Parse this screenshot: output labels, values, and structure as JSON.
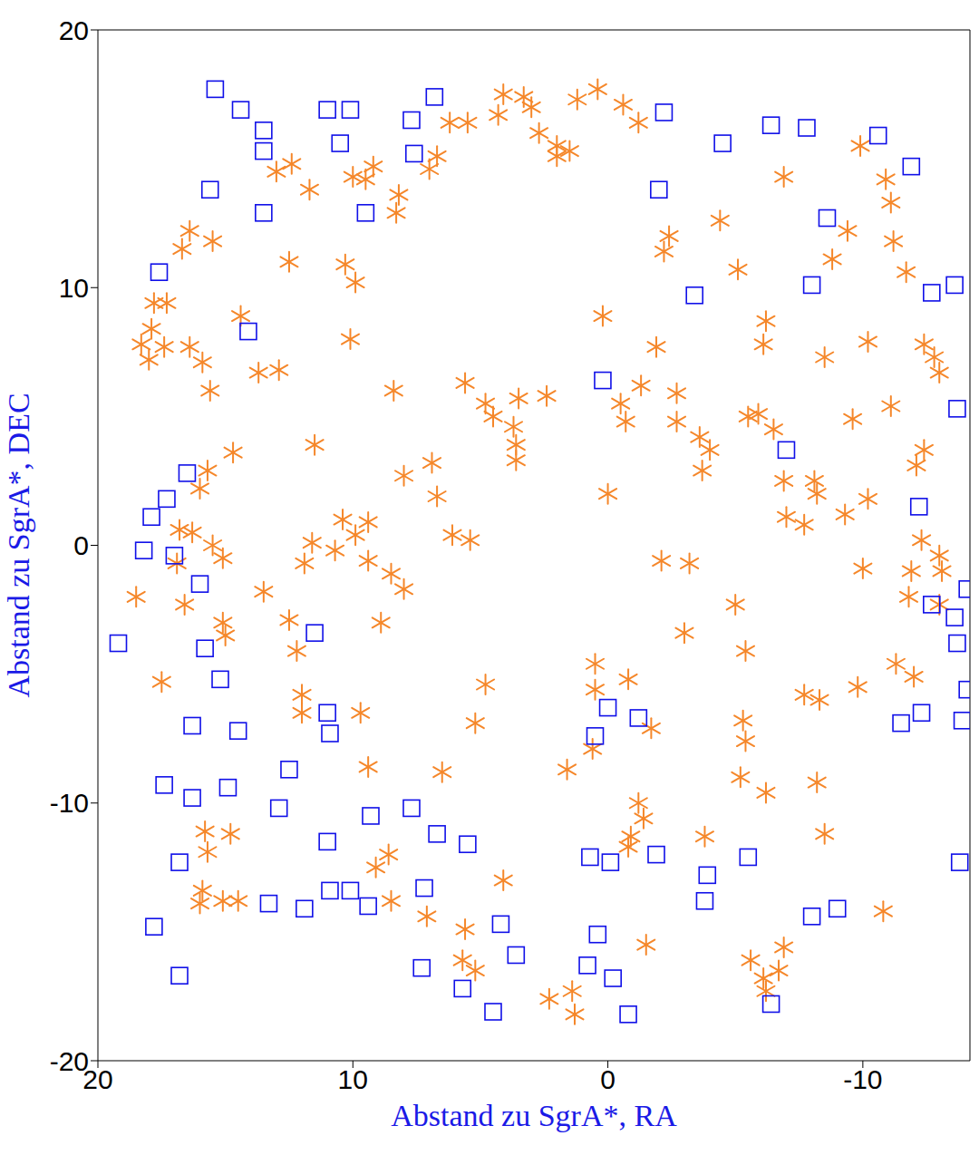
{
  "chart_data": {
    "type": "scatter",
    "xlabel": "Abstand zu SgrA*, RA",
    "ylabel": "Abstand zu SgrA*, DEC",
    "xlim": [
      20,
      -14.2
    ],
    "ylim": [
      -20,
      20
    ],
    "xticks": [
      20,
      10,
      0,
      -10
    ],
    "yticks": [
      -20,
      -10,
      0,
      10,
      20
    ],
    "series": [
      {
        "color": "#f5872a",
        "marker": "asterisk",
        "x": [
          4.1,
          3.3,
          3.0,
          2.7,
          1.2,
          0.4,
          -0.6,
          -1.2,
          5.5,
          6.2,
          6.7,
          7.0,
          4.3,
          2.0,
          1.5,
          2.0,
          8.2,
          8.3,
          9.2,
          10.0,
          9.5,
          12.4,
          13.0,
          11.7,
          12.5,
          16.4,
          16.7,
          15.5,
          17.8,
          17.3,
          17.9,
          18.3,
          18.0,
          17.4,
          16.4,
          15.9,
          15.6,
          14.4,
          10.3,
          9.9,
          10.1,
          13.7,
          12.9,
          11.5,
          14.7,
          15.7,
          16.0,
          16.8,
          16.3,
          15.5,
          15.1,
          16.9,
          16.6,
          18.5,
          17.5,
          15.1,
          15.0,
          12.5,
          13.5,
          11.6,
          11.9,
          10.7,
          9.9,
          9.4,
          9.4,
          10.4,
          8.5,
          8.0,
          8.9,
          12.2,
          12.0,
          12.0,
          9.7,
          9.4,
          6.5,
          4.8,
          5.2,
          8.6,
          9.1,
          8.5,
          7.1,
          5.6,
          5.7,
          5.2,
          4.1,
          15.8,
          15.7,
          14.8,
          15.9,
          15.1,
          16.0,
          14.5,
          6.7,
          6.1,
          5.4,
          6.9,
          8.0,
          8.4,
          4.8,
          4.5,
          5.6,
          3.5,
          3.7,
          3.6,
          3.6,
          2.4,
          -0.5,
          0.0,
          -1.3,
          -0.7,
          0.2,
          -2.4,
          -2.2,
          -1.9,
          -2.7,
          -2.7,
          -3.6,
          -4.0,
          -3.7,
          -3.2,
          -2.1,
          -3.0,
          -5.0,
          -5.4,
          -5.3,
          -5.4,
          0.5,
          0.5,
          -0.8,
          -1.7,
          0.6,
          1.6,
          -1.2,
          -1.4,
          -0.9,
          -0.8,
          -1.5,
          1.4,
          2.3,
          1.3,
          -3.8,
          -5.6,
          -6.1,
          -6.2,
          -6.7,
          -6.9,
          -6.2,
          -8.2,
          -4.4,
          -5.1,
          -6.2,
          -6.1,
          -5.9,
          -6.5,
          -5.5,
          -6.9,
          -8.1,
          -8.2,
          -7.0,
          -7.7,
          -9.3,
          -10.2,
          -12.4,
          -12.1,
          -11.1,
          -10.2,
          -9.6,
          -8.5,
          -8.8,
          -9.4,
          -11.2,
          -10.9,
          -11.1,
          -11.7,
          -12.4,
          -12.8,
          -13.0,
          -9.9,
          -6.9,
          -10.0,
          -11.9,
          -12.3,
          -13.0,
          -13.1,
          -11.8,
          -13.0,
          -11.3,
          -12.0,
          -7.7,
          -8.3,
          -9.8,
          -8.5,
          -10.8,
          -5.2
        ],
        "y": [
          17.5,
          17.4,
          17.0,
          16.0,
          17.3,
          17.7,
          17.1,
          16.4,
          16.4,
          16.4,
          15.1,
          14.6,
          16.7,
          15.5,
          15.3,
          15.1,
          13.6,
          12.9,
          14.7,
          14.3,
          14.2,
          14.8,
          14.5,
          13.8,
          11.0,
          12.2,
          11.5,
          11.8,
          9.4,
          9.4,
          8.4,
          7.8,
          7.2,
          7.7,
          7.7,
          7.1,
          6.0,
          8.9,
          10.9,
          10.2,
          8.0,
          6.7,
          6.8,
          3.9,
          3.6,
          2.9,
          2.2,
          0.6,
          0.5,
          0.0,
          -0.5,
          -0.7,
          -2.3,
          -2.0,
          -5.3,
          -3.0,
          -3.5,
          -2.9,
          -1.8,
          0.1,
          -0.7,
          -0.2,
          0.4,
          0.9,
          -0.6,
          1.0,
          -1.1,
          -1.7,
          -3.0,
          -4.1,
          -5.8,
          -6.5,
          -6.5,
          -8.6,
          -8.8,
          -5.4,
          -6.9,
          -12.0,
          -12.5,
          -13.8,
          -14.4,
          -14.9,
          -16.1,
          -16.5,
          -13.0,
          -11.1,
          -11.9,
          -11.2,
          -13.4,
          -13.8,
          -13.9,
          -13.8,
          1.9,
          0.4,
          0.2,
          3.2,
          2.7,
          6.0,
          5.5,
          5.0,
          6.3,
          5.7,
          4.6,
          3.9,
          3.3,
          5.8,
          5.5,
          2.0,
          6.2,
          4.8,
          8.9,
          12.0,
          11.4,
          7.7,
          5.9,
          4.8,
          4.2,
          3.7,
          2.9,
          -0.7,
          -0.6,
          -3.4,
          -2.3,
          -4.1,
          -6.8,
          -7.6,
          -4.6,
          -5.6,
          -5.2,
          -7.1,
          -7.9,
          -8.7,
          -10.0,
          -10.6,
          -11.3,
          -11.7,
          -15.5,
          -17.3,
          -17.6,
          -18.2,
          -11.3,
          -16.1,
          -16.8,
          -17.3,
          -16.5,
          -15.6,
          -9.6,
          -9.2,
          12.6,
          10.7,
          8.7,
          7.8,
          5.1,
          4.5,
          5.0,
          2.5,
          2.5,
          2.0,
          1.1,
          0.8,
          1.2,
          1.8,
          3.7,
          3.1,
          5.4,
          7.9,
          4.9,
          7.3,
          11.1,
          12.2,
          11.8,
          14.2,
          13.3,
          10.6,
          7.8,
          7.3,
          6.7,
          15.5,
          14.3,
          -0.9,
          -1.0,
          0.2,
          -0.4,
          -1.0,
          -2.0,
          -2.3,
          -4.6,
          -5.1,
          -5.8,
          -6.0,
          -5.5,
          -11.2,
          -14.2,
          -9.0
        ]
      },
      {
        "color": "#1010e8",
        "marker": "square",
        "x": [
          15.4,
          14.4,
          13.5,
          13.5,
          15.6,
          13.5,
          11.0,
          10.1,
          10.5,
          9.5,
          7.7,
          7.6,
          6.8,
          -2.2,
          -2.0,
          -6.4,
          -7.8,
          -4.5,
          -10.6,
          -11.9,
          -8.6,
          -8.0,
          -12.7,
          -13.6,
          -3.4,
          17.6,
          14.1,
          0.2,
          -7.0,
          -13.7,
          -12.2,
          16.5,
          17.3,
          17.9,
          18.2,
          17.0,
          16.0,
          19.2,
          11.5,
          15.8,
          15.2,
          16.3,
          14.5,
          17.4,
          14.9,
          16.3,
          12.5,
          12.9,
          11.0,
          10.9,
          0.0,
          0.5,
          -1.2,
          9.3,
          7.7,
          6.7,
          5.5,
          11.0,
          16.8,
          17.8,
          16.8,
          13.3,
          11.9,
          10.9,
          10.1,
          9.4,
          7.2,
          7.3,
          4.2,
          3.6,
          5.7,
          4.5,
          0.7,
          -0.1,
          -1.9,
          0.4,
          0.8,
          -0.2,
          -0.8,
          -5.5,
          -3.9,
          -3.8,
          -6.4,
          -8.0,
          -9.0,
          -13.8,
          -11.5,
          -12.3,
          -13.9,
          -14.1,
          -13.7,
          -13.6,
          -12.7,
          -14.1
        ],
        "y": [
          17.7,
          16.9,
          16.1,
          15.3,
          13.8,
          12.9,
          16.9,
          16.9,
          15.6,
          12.9,
          16.5,
          15.2,
          17.4,
          16.8,
          13.8,
          16.3,
          16.2,
          15.6,
          15.9,
          14.7,
          12.7,
          10.1,
          9.8,
          10.1,
          9.7,
          10.6,
          8.3,
          6.4,
          3.7,
          5.3,
          1.5,
          2.8,
          1.8,
          1.1,
          -0.2,
          -0.4,
          -1.5,
          -3.8,
          -3.4,
          -4.0,
          -5.2,
          -7.0,
          -7.2,
          -9.3,
          -9.4,
          -9.8,
          -8.7,
          -10.2,
          -6.5,
          -7.3,
          -6.3,
          -7.4,
          -6.7,
          -10.5,
          -10.2,
          -11.2,
          -11.6,
          -11.5,
          -12.3,
          -14.8,
          -16.7,
          -13.9,
          -14.1,
          -13.4,
          -13.4,
          -14.0,
          -13.3,
          -16.4,
          -14.7,
          -15.9,
          -17.2,
          -18.1,
          -12.1,
          -12.3,
          -12.0,
          -15.1,
          -16.3,
          -16.8,
          -18.2,
          -12.1,
          -12.8,
          -13.8,
          -17.8,
          -14.4,
          -14.1,
          -12.3,
          -6.9,
          -6.5,
          -6.8,
          -5.6,
          -3.8,
          -2.8,
          -2.3,
          -1.7
        ]
      }
    ]
  }
}
